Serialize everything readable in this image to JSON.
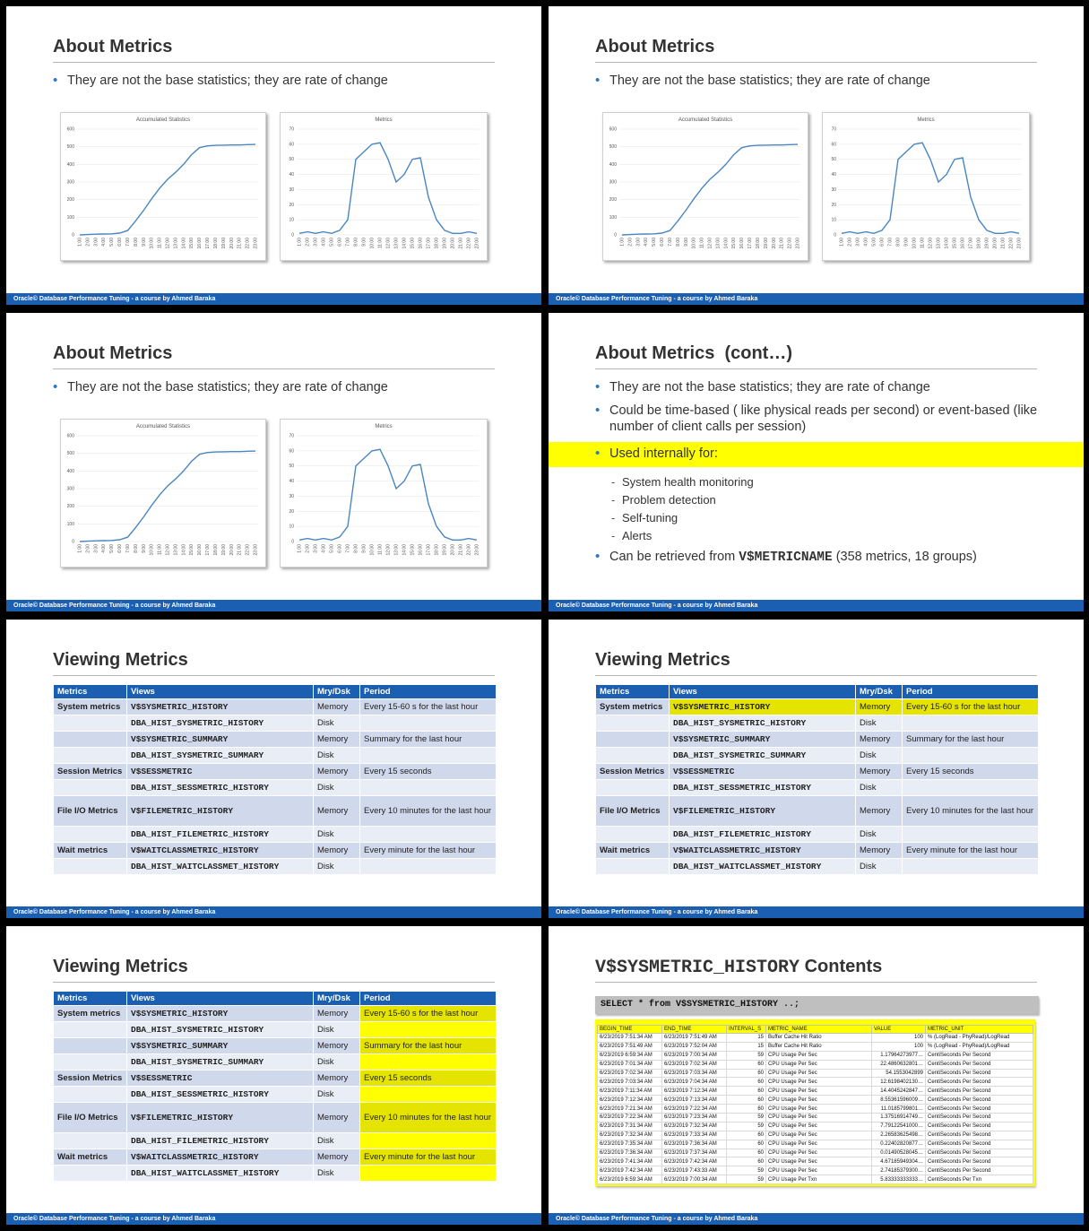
{
  "footer": "Oracle© Database Performance Tuning -  a course by Ahmed Baraka",
  "metrics_slide": {
    "title": "About Metrics",
    "bullet": "They are not the base statistics; they are rate of change"
  },
  "charts": {
    "accumulated": {
      "type": "line",
      "title": "Accumulated Statistics",
      "y_ticks": [
        "0",
        "100",
        "200",
        "300",
        "400",
        "500",
        "600"
      ],
      "ylim": [
        0,
        600
      ],
      "x": [
        "1:00",
        "2:00",
        "3:00",
        "4:00",
        "5:00",
        "6:00",
        "7:00",
        "8:00",
        "9:00",
        "10:00",
        "11:00",
        "12:00",
        "13:00",
        "14:00",
        "15:00",
        "16:00",
        "17:00",
        "18:00",
        "19:00",
        "20:00",
        "21:00",
        "22:00",
        "23:00"
      ],
      "values": [
        0,
        2,
        4,
        5,
        6,
        10,
        25,
        80,
        140,
        205,
        265,
        315,
        355,
        400,
        455,
        495,
        505,
        508,
        509,
        510,
        510,
        512,
        513
      ]
    },
    "metrics": {
      "type": "line",
      "title": "Metrics",
      "y_ticks": [
        "0",
        "10",
        "20",
        "30",
        "40",
        "50",
        "60",
        "70"
      ],
      "ylim": [
        0,
        70
      ],
      "x": [
        "1:00",
        "2:00",
        "3:00",
        "4:00",
        "5:00",
        "6:00",
        "7:00",
        "8:00",
        "9:00",
        "10:00",
        "11:00",
        "12:00",
        "13:00",
        "14:00",
        "15:00",
        "16:00",
        "17:00",
        "18:00",
        "19:00",
        "20:00",
        "21:00",
        "22:00",
        "23:00"
      ],
      "values": [
        1,
        2,
        1,
        2,
        1,
        3,
        10,
        50,
        55,
        60,
        61,
        50,
        35,
        40,
        50,
        51,
        25,
        10,
        3,
        1,
        1,
        2,
        1
      ]
    }
  },
  "cont_slide": {
    "title": "About Metrics  (cont…)",
    "bullets": [
      "They are not the base statistics; they are rate of change",
      "Could be time-based ( like physical reads per second) or event-based (like number of client calls per session)",
      "Used internally for:"
    ],
    "sub_bullets": [
      "System health monitoring",
      "Problem detection",
      "Self-tuning",
      "Alerts"
    ],
    "last_prefix": "Can be retrieved from ",
    "last_code": "V$METRICNAME",
    "last_suffix": " (358 metrics, 18 groups)"
  },
  "viewing": {
    "title": "Viewing Metrics",
    "headers": [
      "Metrics",
      "Views",
      "Mry/Dsk",
      "Period"
    ],
    "rows": [
      {
        "cat": "System metrics",
        "view": "V$SYSMETRIC_HISTORY",
        "md": "Memory",
        "period": "Every 15-60 s for the last hour"
      },
      {
        "cat": "",
        "view": "DBA_HIST_SYSMETRIC_HISTORY",
        "md": "Disk",
        "period": ""
      },
      {
        "cat": "",
        "view": "V$SYSMETRIC_SUMMARY",
        "md": "Memory",
        "period": "Summary for the last hour"
      },
      {
        "cat": "",
        "view": "DBA_HIST_SYSMETRIC_SUMMARY",
        "md": "Disk",
        "period": ""
      },
      {
        "cat": "Session Metrics",
        "view": "V$SESSMETRIC",
        "md": "Memory",
        "period": "Every 15 seconds"
      },
      {
        "cat": "",
        "view": "DBA_HIST_SESSMETRIC_HISTORY",
        "md": "Disk",
        "period": ""
      },
      {
        "cat": "File I/O Metrics",
        "view": "V$FILEMETRIC_HISTORY",
        "md": "Memory",
        "period": "Every 10 minutes for the last hour"
      },
      {
        "cat": "",
        "view": "DBA_HIST_FILEMETRIC_HISTORY",
        "md": "Disk",
        "period": ""
      },
      {
        "cat": "Wait metrics",
        "view": "V$WAITCLASSMETRIC_HISTORY",
        "md": "Memory",
        "period": "Every minute for the last hour"
      },
      {
        "cat": "",
        "view": "DBA_HIST_WAITCLASSMET_HISTORY",
        "md": "Disk",
        "period": ""
      }
    ]
  },
  "history_slide": {
    "title_code": "V$SYSMETRIC_HISTORY",
    "title_suffix": " Contents",
    "query": "SELECT * from V$SYSMETRIC_HISTORY ..;",
    "grid_headers": [
      "BEGIN_TIME",
      "END_TIME",
      "INTERVAL_S",
      "METRIC_NAME",
      "VALUE",
      "METRIC_UNIT"
    ],
    "grid_rows": [
      [
        "6/23/2019 7:51:34 AM",
        "6/23/2019 7:51:49 AM",
        "15",
        "Buffer Cache Hit Ratio",
        "100",
        "% (LogRead - PhyRead)/LogRead"
      ],
      [
        "6/23/2019 7:51:49 AM",
        "6/23/2019 7:52:04 AM",
        "15",
        "Buffer Cache Hit Ratio",
        "100",
        "% (LogRead - PhyRead)/LogRead"
      ],
      [
        "6/23/2019 6:59:34 AM",
        "6/23/2019 7:00:34 AM",
        "59",
        "CPU Usage Per Sec",
        "1.17964273977…",
        "CentiSeconds Per Second"
      ],
      [
        "6/23/2019 7:01:34 AM",
        "6/23/2019 7:02:34 AM",
        "60",
        "CPU Usage Per Sec",
        "22.4860632801…",
        "CentiSeconds Per Second"
      ],
      [
        "6/23/2019 7:02:34 AM",
        "6/23/2019 7:03:34 AM",
        "60",
        "CPU Usage Per Sec",
        "54.1553042899",
        "CentiSeconds Per Second"
      ],
      [
        "6/23/2019 7:03:34 AM",
        "6/23/2019 7:04:34 AM",
        "60",
        "CPU Usage Per Sec",
        "12.6198402130…",
        "CentiSeconds Per Second"
      ],
      [
        "6/23/2019 7:11:34 AM",
        "6/23/2019 7:12:34 AM",
        "60",
        "CPU Usage Per Sec",
        "14.4045242847…",
        "CentiSeconds Per Second"
      ],
      [
        "6/23/2019 7:12:34 AM",
        "6/23/2019 7:13:34 AM",
        "60",
        "CPU Usage Per Sec",
        "8.55361596009…",
        "CentiSeconds Per Second"
      ],
      [
        "6/23/2019 7:21:34 AM",
        "6/23/2019 7:22:34 AM",
        "60",
        "CPU Usage Per Sec",
        "11.0185799801…",
        "CentiSeconds Per Second"
      ],
      [
        "6/23/2019 7:22:34 AM",
        "6/23/2019 7:23:34 AM",
        "59",
        "CPU Usage Per Sec",
        "1.37516914749…",
        "CentiSeconds Per Second"
      ],
      [
        "6/23/2019 7:31:34 AM",
        "6/23/2019 7:32:34 AM",
        "59",
        "CPU Usage Per Sec",
        "7.79122541000…",
        "CentiSeconds Per Second"
      ],
      [
        "6/23/2019 7:32:34 AM",
        "6/23/2019 7:33:34 AM",
        "60",
        "CPU Usage Per Sec",
        "2.26583625498…",
        "CentiSeconds Per Second"
      ],
      [
        "6/23/2019 7:35:34 AM",
        "6/23/2019 7:36:34 AM",
        "60",
        "CPU Usage Per Sec",
        "0.22402820877…",
        "CentiSeconds Per Second"
      ],
      [
        "6/23/2019 7:36:34 AM",
        "6/23/2019 7:37:34 AM",
        "60",
        "CPU Usage Per Sec",
        "0.01490528045…",
        "CentiSeconds Per Second"
      ],
      [
        "6/23/2019 7:41:34 AM",
        "6/23/2019 7:42:34 AM",
        "60",
        "CPU Usage Per Sec",
        "4.67185949304…",
        "CentiSeconds Per Second"
      ],
      [
        "6/23/2019 7:42:34 AM",
        "6/23/2019 7:43:33 AM",
        "59",
        "CPU Usage Per Sec",
        "2.74185379300…",
        "CentiSeconds Per Second"
      ],
      [
        "6/23/2019 6:59:34 AM",
        "6/23/2019 7:00:34 AM",
        "59",
        "CPU Usage Per Txn",
        "5.83333333333…",
        "CentiSeconds Per Txn"
      ]
    ]
  },
  "colors": {
    "accent": "#1b5fb3",
    "highlight": "#ffff00",
    "line": "#4a86c0"
  }
}
